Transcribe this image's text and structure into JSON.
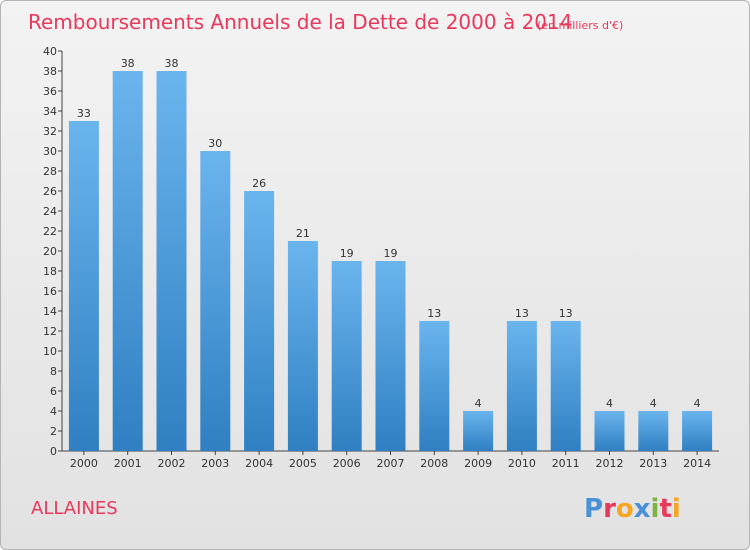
{
  "chart_data": {
    "type": "bar",
    "title": "Remboursements Annuels de la Dette de 2000 à 2014",
    "subtitle": "(en milliers d'€)",
    "categories": [
      "2000",
      "2001",
      "2002",
      "2003",
      "2004",
      "2005",
      "2006",
      "2007",
      "2008",
      "2009",
      "2010",
      "2011",
      "2012",
      "2013",
      "2014"
    ],
    "values": [
      33,
      38,
      38,
      30,
      26,
      21,
      19,
      19,
      13,
      4,
      13,
      13,
      4,
      4,
      4
    ],
    "ylim": [
      0,
      40
    ],
    "ytick_step": 2,
    "grid": false,
    "bar_color_top": "#6bb5ee",
    "bar_color_bottom": "#2f7fc2"
  },
  "commune": "ALLAINES",
  "brand": {
    "letters": [
      "P",
      "r",
      "o",
      "x",
      "i",
      "t",
      "i"
    ],
    "colors": [
      "#4a90d9",
      "#e8395c",
      "#f5a623",
      "#4a90d9",
      "#7cb342",
      "#e8395c",
      "#f5a623"
    ]
  },
  "colors": {
    "title": "#e8395c",
    "axis": "#444444"
  }
}
